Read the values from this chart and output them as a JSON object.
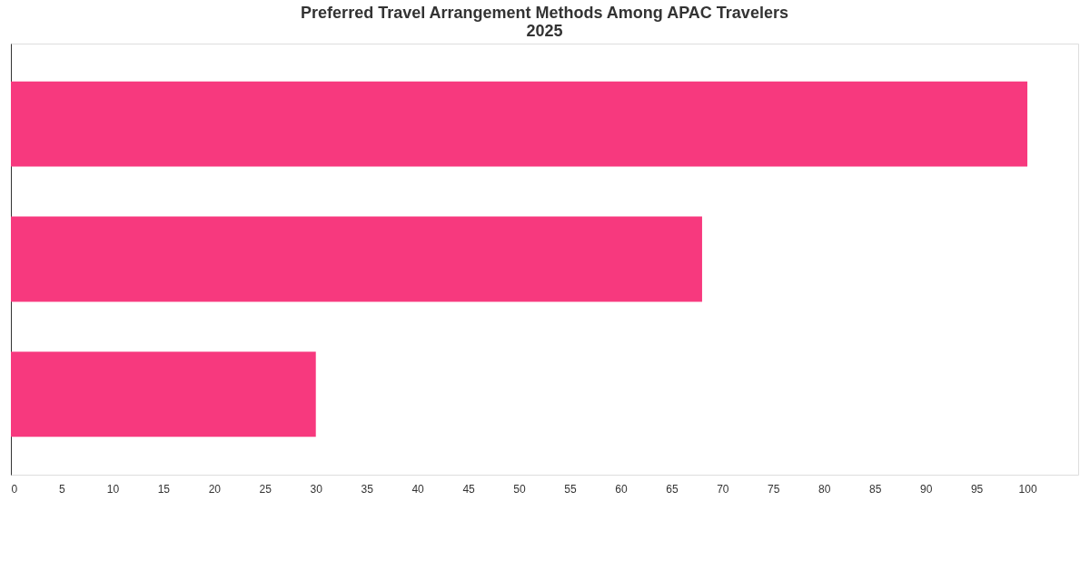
{
  "chart_data": {
    "type": "bar",
    "orientation": "horizontal",
    "title": "Preferred Travel Arrangement Methods Among APAC Travelers\n2025",
    "categories": [
      null,
      null,
      null
    ],
    "values": [
      100,
      68,
      30
    ],
    "color": "#f7397e",
    "xlim": [
      0,
      105
    ],
    "xticks": [
      0,
      5,
      10,
      15,
      20,
      25,
      30,
      35,
      40,
      45,
      50,
      55,
      60,
      65,
      70,
      75,
      80,
      85,
      90,
      95,
      100
    ],
    "grid": false
  }
}
